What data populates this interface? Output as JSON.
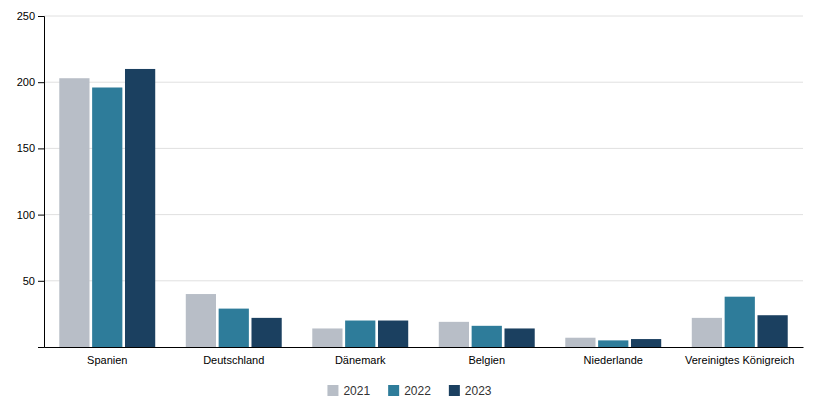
{
  "chart_data": {
    "type": "bar",
    "categories": [
      "Spanien",
      "Deutschland",
      "Dänemark",
      "Belgien",
      "Niederlande",
      "Vereinigtes Königreich"
    ],
    "series": [
      {
        "name": "2021",
        "color": "#b8bec7",
        "values": [
          203,
          40,
          14,
          19,
          7,
          22
        ]
      },
      {
        "name": "2022",
        "color": "#2e7c9a",
        "values": [
          196,
          29,
          20,
          16,
          5,
          38
        ]
      },
      {
        "name": "2023",
        "color": "#1b4060",
        "values": [
          210,
          22,
          20,
          14,
          6,
          24
        ]
      }
    ],
    "ylim": [
      0,
      250
    ],
    "yticks": [
      50,
      100,
      150,
      200,
      250
    ],
    "grid": true,
    "legend": "bottom"
  }
}
